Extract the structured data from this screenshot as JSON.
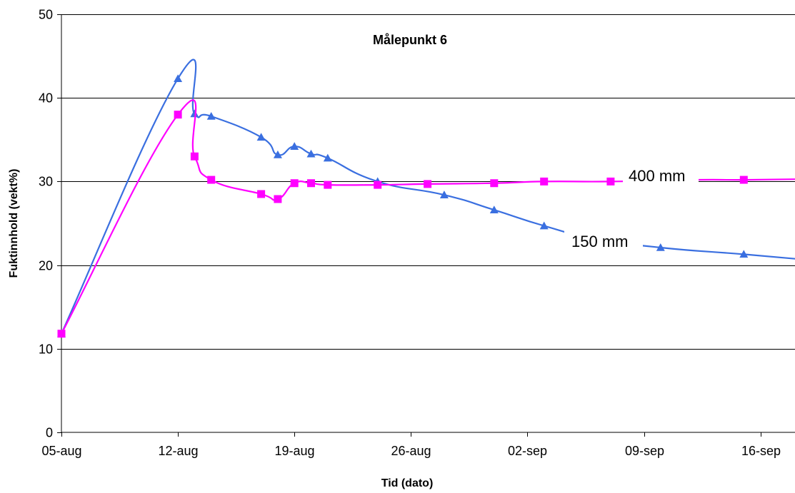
{
  "chart_data": {
    "type": "line",
    "title": "Målepunkt 6",
    "xlabel": "Tid (dato)",
    "ylabel": "Fuktinnhold (vekt%)",
    "ylim": [
      0,
      50
    ],
    "yticks": [
      "0",
      "10",
      "20",
      "30",
      "40",
      "50"
    ],
    "xlim": [
      "2008-08-05",
      "2008-09-19"
    ],
    "xticks": [
      {
        "date": "2008-08-05",
        "label": "05-aug"
      },
      {
        "date": "2008-08-12",
        "label": "12-aug"
      },
      {
        "date": "2008-08-19",
        "label": "19-aug"
      },
      {
        "date": "2008-08-26",
        "label": "26-aug"
      },
      {
        "date": "2008-09-02",
        "label": "02-sep"
      },
      {
        "date": "2008-09-09",
        "label": "09-sep"
      },
      {
        "date": "2008-09-16",
        "label": "16-sep"
      }
    ],
    "grid": "horizontal",
    "series": [
      {
        "name": "150 mm",
        "color": "#3A6FE0",
        "marker": "triangle",
        "points": [
          {
            "x": "2008-08-05",
            "y": 11.8
          },
          {
            "x": "2008-08-12",
            "y": 42.3
          },
          {
            "x": "2008-08-13",
            "y": 38.1
          },
          {
            "x": "2008-08-14",
            "y": 37.8
          },
          {
            "x": "2008-08-17",
            "y": 35.3
          },
          {
            "x": "2008-08-18",
            "y": 33.2
          },
          {
            "x": "2008-08-19",
            "y": 34.2
          },
          {
            "x": "2008-08-20",
            "y": 33.3
          },
          {
            "x": "2008-08-21",
            "y": 32.8
          },
          {
            "x": "2008-08-24",
            "y": 30.0
          },
          {
            "x": "2008-08-28",
            "y": 28.4
          },
          {
            "x": "2008-08-31",
            "y": 26.6
          },
          {
            "x": "2008-09-03",
            "y": 24.7
          },
          {
            "x": "2008-09-06",
            "y": 23.2
          },
          {
            "x": "2008-09-10",
            "y": 22.1
          },
          {
            "x": "2008-09-15",
            "y": 21.3
          },
          {
            "x": "2008-09-19",
            "y": 20.6
          }
        ]
      },
      {
        "name": "400 mm",
        "color": "#FF00FF",
        "marker": "square",
        "points": [
          {
            "x": "2008-08-05",
            "y": 11.8
          },
          {
            "x": "2008-08-12",
            "y": 38.0
          },
          {
            "x": "2008-08-13",
            "y": 33.0
          },
          {
            "x": "2008-08-14",
            "y": 30.2
          },
          {
            "x": "2008-08-17",
            "y": 28.5
          },
          {
            "x": "2008-08-18",
            "y": 27.9
          },
          {
            "x": "2008-08-19",
            "y": 29.8
          },
          {
            "x": "2008-08-20",
            "y": 29.8
          },
          {
            "x": "2008-08-21",
            "y": 29.6
          },
          {
            "x": "2008-08-24",
            "y": 29.6
          },
          {
            "x": "2008-08-27",
            "y": 29.7
          },
          {
            "x": "2008-08-31",
            "y": 29.8
          },
          {
            "x": "2008-09-03",
            "y": 30.0
          },
          {
            "x": "2008-09-07",
            "y": 30.0
          },
          {
            "x": "2008-09-12",
            "y": 30.2
          },
          {
            "x": "2008-09-15",
            "y": 30.2
          },
          {
            "x": "2008-09-19",
            "y": 30.3
          }
        ]
      }
    ]
  }
}
